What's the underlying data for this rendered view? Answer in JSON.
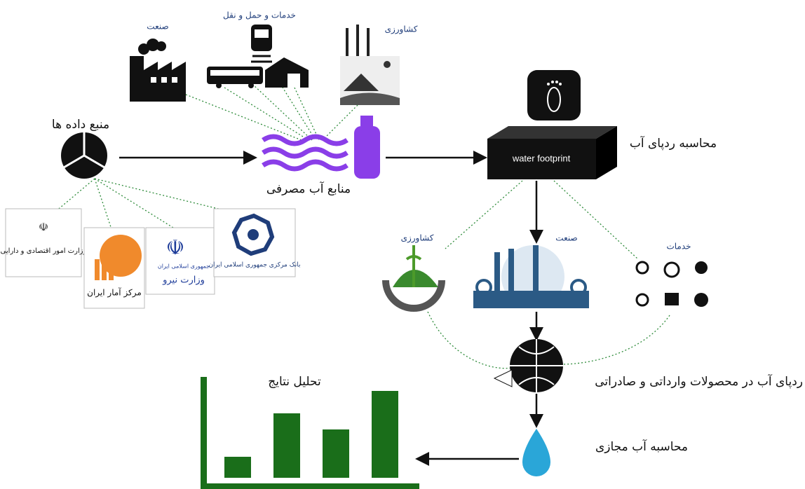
{
  "top_sectors": {
    "industry": "صنعت",
    "services_transport": "خدمات و حمل و نقل",
    "agriculture": "کشاورزی"
  },
  "data_source": {
    "title": "منبع داده ها",
    "organizations": {
      "economy": "وزارت امور اقتصادی و دارایی",
      "statistics": "مرکز آمار ایران",
      "energy_top": "جمهوری اسلامی ایران",
      "energy": "وزارت نیرو",
      "central_bank": "بانک مرکزی جمهوری اسلامی ایران"
    }
  },
  "water_resources": "منابع آب مصرفی",
  "footprint": {
    "box": "water footprint",
    "label": "محاسبه ردپای آب"
  },
  "lower_sectors": {
    "agriculture": "کشاورزی",
    "industry": "صنعت",
    "services": "خدمات"
  },
  "trade": "ردپای آب در محصولات وارداتی و صادراتی",
  "virtual_water": "محاسبه آب مجازی",
  "analysis": "تحلیل نتایج"
}
